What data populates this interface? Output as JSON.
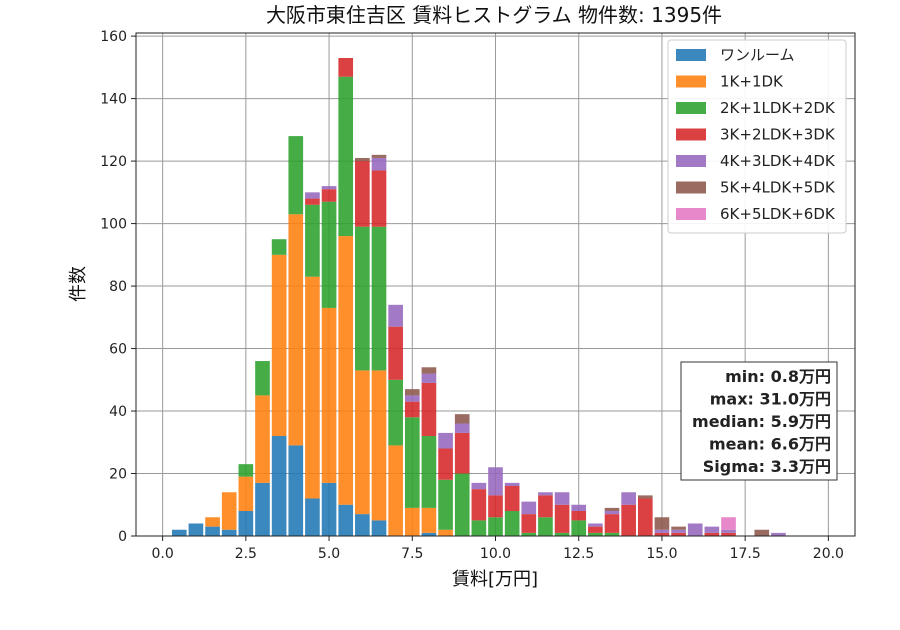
{
  "chart_data": {
    "type": "bar",
    "stacked": true,
    "title": "大阪市東住吉区 賃料ヒストグラム 物件数: 1395件",
    "xlabel": "賃料[万円]",
    "ylabel": "件数",
    "xlim": [
      -0.8,
      20.8
    ],
    "ylim": [
      0,
      161
    ],
    "xticks": [
      0.0,
      2.5,
      5.0,
      7.5,
      10.0,
      12.5,
      15.0,
      17.5,
      20.0
    ],
    "xtick_labels": [
      "0.0",
      "2.5",
      "5.0",
      "7.5",
      "10.0",
      "12.5",
      "15.0",
      "17.5",
      "20.0"
    ],
    "yticks": [
      0,
      20,
      40,
      60,
      80,
      100,
      120,
      140,
      160
    ],
    "ytick_labels": [
      "0",
      "20",
      "40",
      "60",
      "80",
      "100",
      "120",
      "140",
      "160"
    ],
    "grid": true,
    "legend_position": "top-right",
    "bin_width": 0.5,
    "x": [
      0.5,
      1.0,
      1.5,
      2.0,
      2.5,
      3.0,
      3.5,
      4.0,
      4.5,
      5.0,
      5.5,
      6.0,
      6.5,
      7.0,
      7.5,
      8.0,
      8.5,
      9.0,
      9.5,
      10.0,
      10.5,
      11.0,
      11.5,
      12.0,
      12.5,
      13.0,
      13.5,
      14.0,
      14.5,
      15.0,
      15.5,
      16.0,
      16.5,
      17.0,
      17.5,
      18.0,
      18.5
    ],
    "series": [
      {
        "name": "ワンルーム",
        "color": "#1f77b4",
        "values": [
          2,
          4,
          3,
          2,
          8,
          17,
          32,
          29,
          12,
          17,
          10,
          7,
          5,
          0,
          0,
          1,
          0,
          0,
          0,
          0,
          0,
          0,
          0,
          0,
          0,
          0,
          0,
          0,
          0,
          0,
          0,
          0,
          0,
          0,
          0,
          0,
          0
        ]
      },
      {
        "name": "1K+1DK",
        "color": "#ff7f0e",
        "values": [
          0,
          0,
          3,
          12,
          11,
          28,
          58,
          74,
          71,
          56,
          86,
          46,
          48,
          29,
          9,
          8,
          2,
          0,
          0,
          0,
          0,
          0,
          0,
          0,
          0,
          0,
          0,
          0,
          0,
          0,
          0,
          0,
          0,
          0,
          0,
          0,
          0
        ]
      },
      {
        "name": "2K+1LDK+2DK",
        "color": "#2ca02c",
        "values": [
          0,
          0,
          0,
          0,
          4,
          11,
          5,
          25,
          23,
          34,
          51,
          46,
          46,
          21,
          29,
          23,
          16,
          20,
          5,
          6,
          8,
          1,
          6,
          1,
          5,
          1,
          1,
          0,
          0,
          0,
          0,
          0,
          0,
          0,
          0,
          0,
          0
        ]
      },
      {
        "name": "3K+2LDK+3DK",
        "color": "#d62728",
        "values": [
          0,
          0,
          0,
          0,
          0,
          0,
          0,
          0,
          2,
          4,
          6,
          21,
          18,
          17,
          5,
          17,
          10,
          13,
          10,
          7,
          8,
          6,
          7,
          9,
          3,
          2,
          6,
          10,
          12,
          1,
          1,
          0,
          1,
          1,
          0,
          0,
          0
        ]
      },
      {
        "name": "4K+3LDK+4DK",
        "color": "#9467bd",
        "values": [
          0,
          0,
          0,
          0,
          0,
          0,
          0,
          0,
          2,
          1,
          0,
          0,
          4,
          7,
          2,
          3,
          5,
          3,
          2,
          9,
          1,
          4,
          1,
          4,
          2,
          1,
          1,
          4,
          0,
          1,
          1,
          4,
          2,
          1,
          0,
          0,
          1
        ]
      },
      {
        "name": "5K+4LDK+5DK",
        "color": "#8c564b",
        "values": [
          0,
          0,
          0,
          0,
          0,
          0,
          0,
          0,
          0,
          0,
          0,
          1,
          1,
          0,
          2,
          2,
          0,
          3,
          0,
          0,
          0,
          0,
          0,
          0,
          0,
          0,
          1,
          0,
          1,
          4,
          1,
          0,
          0,
          0,
          0,
          2,
          0
        ]
      },
      {
        "name": "6K+5LDK+6DK",
        "color": "#e377c2",
        "values": [
          0,
          0,
          0,
          0,
          0,
          0,
          0,
          0,
          0,
          0,
          0,
          0,
          0,
          0,
          0,
          0,
          0,
          0,
          0,
          0,
          0,
          0,
          0,
          0,
          0,
          0,
          0,
          0,
          0,
          0,
          0,
          0,
          0,
          4,
          0,
          0,
          0
        ]
      }
    ],
    "stats": [
      "min: 0.8万円",
      "max: 31.0万円",
      "median: 5.9万円",
      "mean: 6.6万円",
      "Sigma: 3.3万円"
    ]
  }
}
